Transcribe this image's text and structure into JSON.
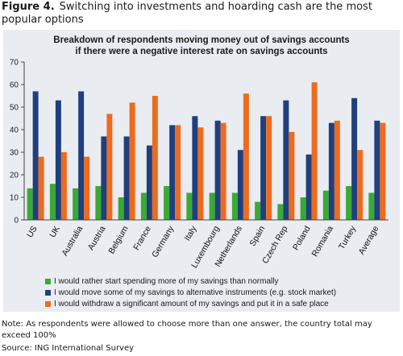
{
  "figure": {
    "number": "Figure 4.",
    "caption": "Switching into investments and hoarding cash are the most popular options"
  },
  "chart_data": {
    "type": "bar",
    "title_line1": "Breakdown of respondents moving money out of savings accounts",
    "title_line2": "if there were a negative interest rate on savings accounts",
    "xlabel": "",
    "ylabel": "",
    "ylim": [
      0,
      70
    ],
    "yticks": [
      0,
      10,
      20,
      30,
      40,
      50,
      60,
      70
    ],
    "grid": false,
    "legend_position": "bottom",
    "categories": [
      "US",
      "UK",
      "Australia",
      "Austria",
      "Belgium",
      "France",
      "Germany",
      "Italy",
      "Luxembourg",
      "Netherlands",
      "Spain",
      "Czech Rep",
      "Poland",
      "Romania",
      "Turkey",
      "Average"
    ],
    "series": [
      {
        "name": "I would rather start spending more of my savings than normally",
        "color": "#3aaa35",
        "values": [
          14,
          16,
          14,
          15,
          10,
          12,
          15,
          12,
          12,
          12,
          8,
          7,
          10,
          13,
          15,
          12
        ]
      },
      {
        "name": "I would move some of my savings to alternative instruments (e.g. stock market)",
        "color": "#1f3f7f",
        "values": [
          57,
          53,
          57,
          37,
          37,
          33,
          42,
          46,
          44,
          31,
          46,
          53,
          29,
          43,
          54,
          44
        ]
      },
      {
        "name": "I would withdraw a significant amount of my savings and put it in a safe place",
        "color": "#ee6b1e",
        "values": [
          28,
          30,
          28,
          47,
          52,
          55,
          42,
          41,
          43,
          56,
          46,
          39,
          61,
          44,
          31,
          43
        ]
      }
    ]
  },
  "note": "Note: As respondents were allowed to choose more than one answer, the country total may exceed 100%",
  "source": "Source: ING International Survey"
}
